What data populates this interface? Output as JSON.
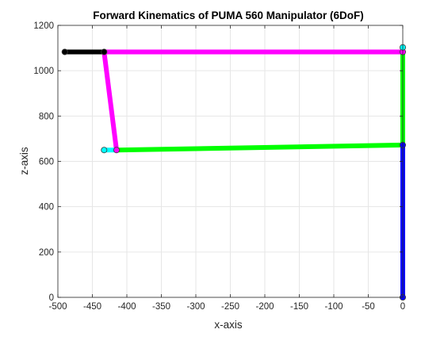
{
  "chart_data": {
    "type": "line",
    "title": "Forward Kinematics of PUMA 560 Manipulator (6DoF)",
    "xlabel": "x-axis",
    "ylabel": "z-axis",
    "xlim": [
      -500,
      0
    ],
    "ylim": [
      0,
      1200
    ],
    "grid": true,
    "x_ticks": [
      -500,
      -450,
      -400,
      -350,
      -300,
      -250,
      -200,
      -150,
      -100,
      -50,
      0
    ],
    "y_ticks": [
      0,
      200,
      400,
      600,
      800,
      1000,
      1200
    ],
    "series": [
      {
        "color": "#0000ff",
        "x": [
          0,
          0
        ],
        "y": [
          0,
          672
        ]
      },
      {
        "color": "#00ff00",
        "x": [
          0,
          -415
        ],
        "y": [
          672,
          650
        ]
      },
      {
        "color": "#00ff00",
        "x": [
          0,
          0
        ],
        "y": [
          672,
          1083
        ]
      },
      {
        "color": "#ff00ff",
        "x": [
          0,
          -433
        ],
        "y": [
          1083,
          1083
        ]
      },
      {
        "color": "#ff00ff",
        "x": [
          -433,
          -415
        ],
        "y": [
          1083,
          650
        ]
      },
      {
        "color": "#00ffff",
        "x": [
          -415,
          -433
        ],
        "y": [
          650,
          650
        ]
      },
      {
        "color": "#00ffff",
        "x": [
          0,
          0
        ],
        "y": [
          1083,
          1103
        ]
      },
      {
        "color": "#000000",
        "x": [
          -433,
          -490
        ],
        "y": [
          1083,
          1083
        ]
      }
    ],
    "joints": [
      {
        "x": 0,
        "y": 0,
        "fill": "#0000ff"
      },
      {
        "x": 0,
        "y": 672,
        "fill": "#0000ff"
      },
      {
        "x": 0,
        "y": 1083,
        "fill": "#ff00ff"
      },
      {
        "x": 0,
        "y": 1103,
        "fill": "#00ffff"
      },
      {
        "x": -433,
        "y": 1083,
        "fill": "#000000"
      },
      {
        "x": -415,
        "y": 650,
        "fill": "#ff00ff"
      },
      {
        "x": -433,
        "y": 650,
        "fill": "#00ffff"
      },
      {
        "x": -490,
        "y": 1083,
        "fill": "#000000"
      }
    ]
  }
}
